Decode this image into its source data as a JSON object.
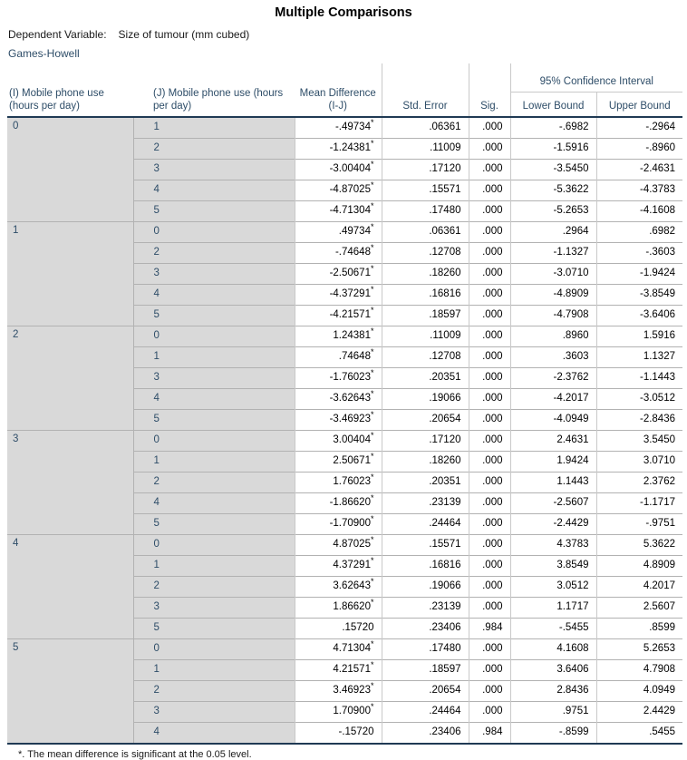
{
  "title": "Multiple Comparisons",
  "dependent_variable": {
    "label": "Dependent Variable:",
    "value": "Size of tumour (mm cubed)"
  },
  "method": "Games-Howell",
  "footnote": "*. The mean difference is significant at the 0.05 level.",
  "star_symbol": "*",
  "colors": {
    "label_text": "#2e4d68",
    "label_cell_bg": "#d9d9d9",
    "dark_rule": "#203a54",
    "light_rule": "#b2b2b2",
    "data_text": "#000000"
  },
  "table": {
    "headers": {
      "i": "(I) Mobile phone use (hours per day)",
      "j": "(J) Mobile phone use (hours per day)",
      "mean_diff": "Mean Difference (I-J)",
      "std_error": "Std. Error",
      "sig": "Sig.",
      "ci": "95% Confidence Interval",
      "lower": "Lower Bound",
      "upper": "Upper Bound"
    },
    "groups": [
      {
        "i": "0",
        "rows": [
          {
            "j": "1",
            "mean_diff": "-.49734",
            "sig_star": true,
            "std_error": ".06361",
            "sig": ".000",
            "lower": "-.6982",
            "upper": "-.2964"
          },
          {
            "j": "2",
            "mean_diff": "-1.24381",
            "sig_star": true,
            "std_error": ".11009",
            "sig": ".000",
            "lower": "-1.5916",
            "upper": "-.8960"
          },
          {
            "j": "3",
            "mean_diff": "-3.00404",
            "sig_star": true,
            "std_error": ".17120",
            "sig": ".000",
            "lower": "-3.5450",
            "upper": "-2.4631"
          },
          {
            "j": "4",
            "mean_diff": "-4.87025",
            "sig_star": true,
            "std_error": ".15571",
            "sig": ".000",
            "lower": "-5.3622",
            "upper": "-4.3783"
          },
          {
            "j": "5",
            "mean_diff": "-4.71304",
            "sig_star": true,
            "std_error": ".17480",
            "sig": ".000",
            "lower": "-5.2653",
            "upper": "-4.1608"
          }
        ]
      },
      {
        "i": "1",
        "rows": [
          {
            "j": "0",
            "mean_diff": ".49734",
            "sig_star": true,
            "std_error": ".06361",
            "sig": ".000",
            "lower": ".2964",
            "upper": ".6982"
          },
          {
            "j": "2",
            "mean_diff": "-.74648",
            "sig_star": true,
            "std_error": ".12708",
            "sig": ".000",
            "lower": "-1.1327",
            "upper": "-.3603"
          },
          {
            "j": "3",
            "mean_diff": "-2.50671",
            "sig_star": true,
            "std_error": ".18260",
            "sig": ".000",
            "lower": "-3.0710",
            "upper": "-1.9424"
          },
          {
            "j": "4",
            "mean_diff": "-4.37291",
            "sig_star": true,
            "std_error": ".16816",
            "sig": ".000",
            "lower": "-4.8909",
            "upper": "-3.8549"
          },
          {
            "j": "5",
            "mean_diff": "-4.21571",
            "sig_star": true,
            "std_error": ".18597",
            "sig": ".000",
            "lower": "-4.7908",
            "upper": "-3.6406"
          }
        ]
      },
      {
        "i": "2",
        "rows": [
          {
            "j": "0",
            "mean_diff": "1.24381",
            "sig_star": true,
            "std_error": ".11009",
            "sig": ".000",
            "lower": ".8960",
            "upper": "1.5916"
          },
          {
            "j": "1",
            "mean_diff": ".74648",
            "sig_star": true,
            "std_error": ".12708",
            "sig": ".000",
            "lower": ".3603",
            "upper": "1.1327"
          },
          {
            "j": "3",
            "mean_diff": "-1.76023",
            "sig_star": true,
            "std_error": ".20351",
            "sig": ".000",
            "lower": "-2.3762",
            "upper": "-1.1443"
          },
          {
            "j": "4",
            "mean_diff": "-3.62643",
            "sig_star": true,
            "std_error": ".19066",
            "sig": ".000",
            "lower": "-4.2017",
            "upper": "-3.0512"
          },
          {
            "j": "5",
            "mean_diff": "-3.46923",
            "sig_star": true,
            "std_error": ".20654",
            "sig": ".000",
            "lower": "-4.0949",
            "upper": "-2.8436"
          }
        ]
      },
      {
        "i": "3",
        "rows": [
          {
            "j": "0",
            "mean_diff": "3.00404",
            "sig_star": true,
            "std_error": ".17120",
            "sig": ".000",
            "lower": "2.4631",
            "upper": "3.5450"
          },
          {
            "j": "1",
            "mean_diff": "2.50671",
            "sig_star": true,
            "std_error": ".18260",
            "sig": ".000",
            "lower": "1.9424",
            "upper": "3.0710"
          },
          {
            "j": "2",
            "mean_diff": "1.76023",
            "sig_star": true,
            "std_error": ".20351",
            "sig": ".000",
            "lower": "1.1443",
            "upper": "2.3762"
          },
          {
            "j": "4",
            "mean_diff": "-1.86620",
            "sig_star": true,
            "std_error": ".23139",
            "sig": ".000",
            "lower": "-2.5607",
            "upper": "-1.1717"
          },
          {
            "j": "5",
            "mean_diff": "-1.70900",
            "sig_star": true,
            "std_error": ".24464",
            "sig": ".000",
            "lower": "-2.4429",
            "upper": "-.9751"
          }
        ]
      },
      {
        "i": "4",
        "rows": [
          {
            "j": "0",
            "mean_diff": "4.87025",
            "sig_star": true,
            "std_error": ".15571",
            "sig": ".000",
            "lower": "4.3783",
            "upper": "5.3622"
          },
          {
            "j": "1",
            "mean_diff": "4.37291",
            "sig_star": true,
            "std_error": ".16816",
            "sig": ".000",
            "lower": "3.8549",
            "upper": "4.8909"
          },
          {
            "j": "2",
            "mean_diff": "3.62643",
            "sig_star": true,
            "std_error": ".19066",
            "sig": ".000",
            "lower": "3.0512",
            "upper": "4.2017"
          },
          {
            "j": "3",
            "mean_diff": "1.86620",
            "sig_star": true,
            "std_error": ".23139",
            "sig": ".000",
            "lower": "1.1717",
            "upper": "2.5607"
          },
          {
            "j": "5",
            "mean_diff": ".15720",
            "sig_star": false,
            "std_error": ".23406",
            "sig": ".984",
            "lower": "-.5455",
            "upper": ".8599"
          }
        ]
      },
      {
        "i": "5",
        "rows": [
          {
            "j": "0",
            "mean_diff": "4.71304",
            "sig_star": true,
            "std_error": ".17480",
            "sig": ".000",
            "lower": "4.1608",
            "upper": "5.2653"
          },
          {
            "j": "1",
            "mean_diff": "4.21571",
            "sig_star": true,
            "std_error": ".18597",
            "sig": ".000",
            "lower": "3.6406",
            "upper": "4.7908"
          },
          {
            "j": "2",
            "mean_diff": "3.46923",
            "sig_star": true,
            "std_error": ".20654",
            "sig": ".000",
            "lower": "2.8436",
            "upper": "4.0949"
          },
          {
            "j": "3",
            "mean_diff": "1.70900",
            "sig_star": true,
            "std_error": ".24464",
            "sig": ".000",
            "lower": ".9751",
            "upper": "2.4429"
          },
          {
            "j": "4",
            "mean_diff": "-.15720",
            "sig_star": false,
            "std_error": ".23406",
            "sig": ".984",
            "lower": "-.8599",
            "upper": ".5455"
          }
        ]
      }
    ]
  }
}
